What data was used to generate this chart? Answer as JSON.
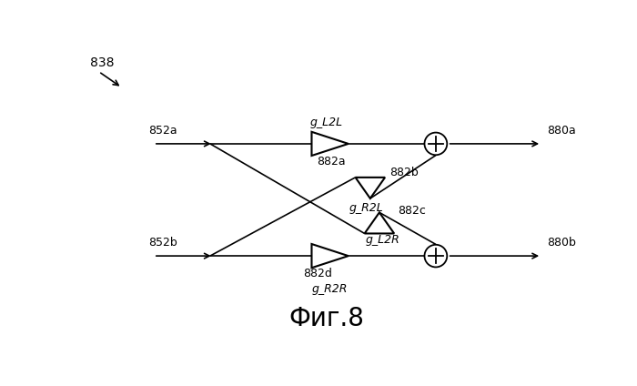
{
  "background_color": "#ffffff",
  "fig_label": "838",
  "fig_caption": "Фиг.8",
  "input_labels": [
    "852a",
    "852b"
  ],
  "output_labels": [
    "880a",
    "880b"
  ],
  "amp_top_label": "g_L2L",
  "amp_bot_label": "g_R2R",
  "tri_down_label": "g_R2L",
  "tri_up_label": "g_L2R",
  "amp_top_id": "882a",
  "tri_down_id": "882b",
  "tri_up_id": "882c",
  "amp_bot_id": "882d",
  "line_color": "#000000",
  "font_size": 9,
  "caption_font_size": 20
}
